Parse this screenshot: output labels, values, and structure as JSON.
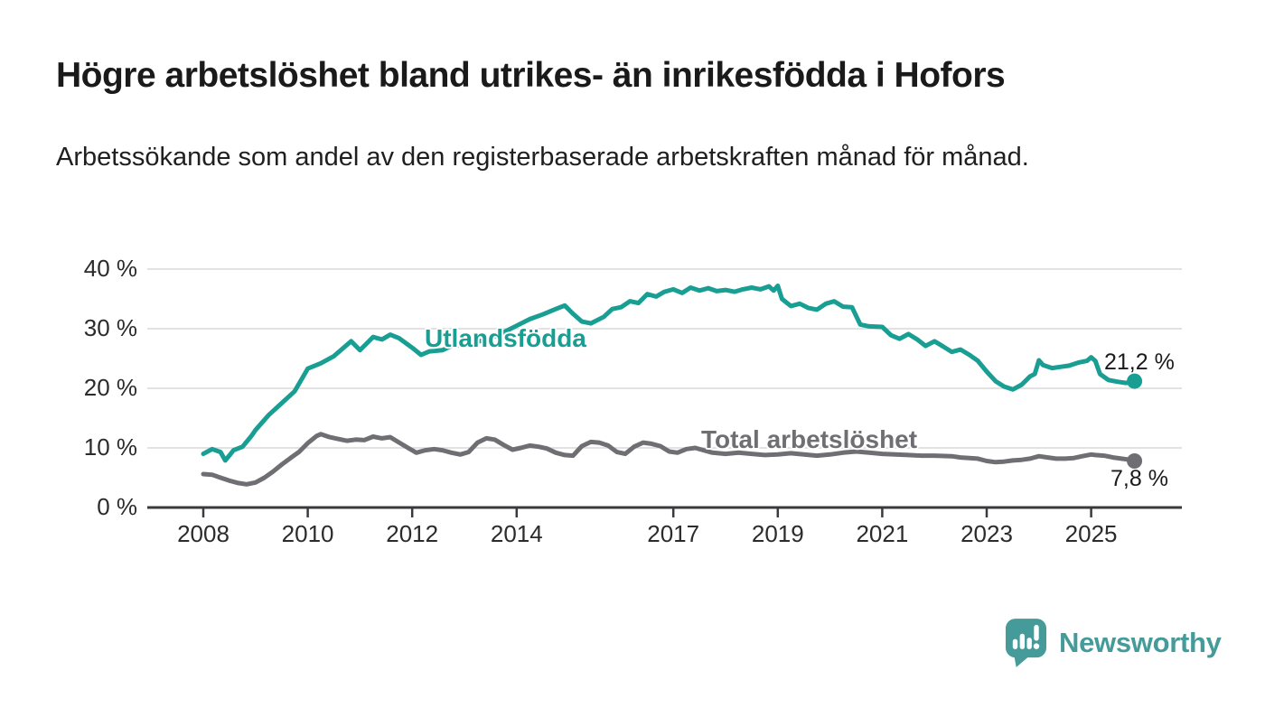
{
  "header": {
    "title": "Högre arbetslöshet bland utrikes- än inrikesfödda i Hofors",
    "subtitle": "Arbetssökande som andel av den registerbaserade arbetskraften månad för månad."
  },
  "chart_data": {
    "type": "line",
    "title": "Högre arbetslöshet bland utrikes- än inrikesfödda i Hofors",
    "subtitle": "Arbetssökande som andel av den registerbaserade arbetskraften månad för månad.",
    "xlabel": "",
    "ylabel": "",
    "ylim": [
      0,
      40
    ],
    "xlim": [
      2007,
      2026.7
    ],
    "grid": "horizontal",
    "legend_position": "inline-labels",
    "y_ticks": {
      "values": [
        0,
        10,
        20,
        30,
        40
      ],
      "labels": [
        "0 %",
        "10 %",
        "20 %",
        "30 %",
        "40 %"
      ]
    },
    "x_ticks": {
      "values": [
        2008,
        2010,
        2012,
        2014,
        2017,
        2019,
        2021,
        2023,
        2025
      ],
      "labels": [
        "2008",
        "2010",
        "2012",
        "2014",
        "2017",
        "2019",
        "2021",
        "2023",
        "2025"
      ]
    },
    "series": [
      {
        "name": "Utlandsfödda",
        "color": "#189e93",
        "end_label": "21,2 %",
        "end_value": 21.2,
        "points": [
          [
            2008.0,
            9.0
          ],
          [
            2008.17,
            9.8
          ],
          [
            2008.33,
            9.3
          ],
          [
            2008.42,
            7.9
          ],
          [
            2008.58,
            9.6
          ],
          [
            2008.75,
            10.2
          ],
          [
            2008.92,
            12.0
          ],
          [
            2009.0,
            13.0
          ],
          [
            2009.25,
            15.5
          ],
          [
            2009.5,
            17.5
          ],
          [
            2009.75,
            19.5
          ],
          [
            2010.0,
            23.3
          ],
          [
            2010.25,
            24.2
          ],
          [
            2010.5,
            25.4
          ],
          [
            2010.83,
            27.9
          ],
          [
            2011.0,
            26.4
          ],
          [
            2011.25,
            28.6
          ],
          [
            2011.42,
            28.2
          ],
          [
            2011.58,
            29.0
          ],
          [
            2011.75,
            28.4
          ],
          [
            2012.0,
            26.8
          ],
          [
            2012.17,
            25.6
          ],
          [
            2012.33,
            26.2
          ],
          [
            2012.58,
            26.4
          ],
          [
            2012.75,
            27.1
          ],
          [
            2013.0,
            27.4
          ],
          [
            2013.25,
            27.8
          ],
          [
            2013.5,
            28.4
          ],
          [
            2013.75,
            29.4
          ],
          [
            2014.0,
            30.5
          ],
          [
            2014.25,
            31.6
          ],
          [
            2014.5,
            32.4
          ],
          [
            2014.75,
            33.3
          ],
          [
            2014.92,
            33.9
          ],
          [
            2015.08,
            32.5
          ],
          [
            2015.25,
            31.2
          ],
          [
            2015.42,
            30.9
          ],
          [
            2015.67,
            32.0
          ],
          [
            2015.83,
            33.3
          ],
          [
            2016.0,
            33.6
          ],
          [
            2016.17,
            34.6
          ],
          [
            2016.33,
            34.3
          ],
          [
            2016.5,
            35.8
          ],
          [
            2016.67,
            35.4
          ],
          [
            2016.83,
            36.2
          ],
          [
            2017.0,
            36.6
          ],
          [
            2017.17,
            36.0
          ],
          [
            2017.33,
            36.9
          ],
          [
            2017.5,
            36.4
          ],
          [
            2017.67,
            36.8
          ],
          [
            2017.83,
            36.3
          ],
          [
            2018.0,
            36.5
          ],
          [
            2018.17,
            36.2
          ],
          [
            2018.33,
            36.6
          ],
          [
            2018.5,
            36.9
          ],
          [
            2018.67,
            36.6
          ],
          [
            2018.83,
            37.1
          ],
          [
            2018.92,
            36.4
          ],
          [
            2019.0,
            37.2
          ],
          [
            2019.08,
            35.0
          ],
          [
            2019.25,
            33.8
          ],
          [
            2019.42,
            34.2
          ],
          [
            2019.58,
            33.5
          ],
          [
            2019.75,
            33.2
          ],
          [
            2019.92,
            34.2
          ],
          [
            2020.08,
            34.6
          ],
          [
            2020.25,
            33.7
          ],
          [
            2020.42,
            33.6
          ],
          [
            2020.58,
            30.7
          ],
          [
            2020.75,
            30.4
          ],
          [
            2021.0,
            30.3
          ],
          [
            2021.17,
            28.9
          ],
          [
            2021.33,
            28.3
          ],
          [
            2021.5,
            29.1
          ],
          [
            2021.67,
            28.2
          ],
          [
            2021.83,
            27.1
          ],
          [
            2022.0,
            27.9
          ],
          [
            2022.17,
            27.0
          ],
          [
            2022.33,
            26.1
          ],
          [
            2022.5,
            26.5
          ],
          [
            2022.67,
            25.6
          ],
          [
            2022.83,
            24.6
          ],
          [
            2023.0,
            22.8
          ],
          [
            2023.17,
            21.2
          ],
          [
            2023.33,
            20.3
          ],
          [
            2023.5,
            19.8
          ],
          [
            2023.67,
            20.6
          ],
          [
            2023.83,
            22.0
          ],
          [
            2023.92,
            22.4
          ],
          [
            2024.0,
            24.7
          ],
          [
            2024.08,
            23.9
          ],
          [
            2024.25,
            23.4
          ],
          [
            2024.42,
            23.6
          ],
          [
            2024.58,
            23.8
          ],
          [
            2024.75,
            24.3
          ],
          [
            2024.92,
            24.6
          ],
          [
            2025.0,
            25.2
          ],
          [
            2025.08,
            24.6
          ],
          [
            2025.17,
            22.4
          ],
          [
            2025.33,
            21.4
          ],
          [
            2025.5,
            21.1
          ],
          [
            2025.67,
            20.9
          ],
          [
            2025.83,
            21.2
          ]
        ]
      },
      {
        "name": "Total arbetslöshet",
        "color": "#6f6f73",
        "end_label": "7,8 %",
        "end_value": 7.8,
        "points": [
          [
            2008.0,
            5.6
          ],
          [
            2008.17,
            5.5
          ],
          [
            2008.33,
            5.0
          ],
          [
            2008.5,
            4.5
          ],
          [
            2008.67,
            4.1
          ],
          [
            2008.83,
            3.9
          ],
          [
            2009.0,
            4.2
          ],
          [
            2009.17,
            5.0
          ],
          [
            2009.33,
            6.0
          ],
          [
            2009.5,
            7.2
          ],
          [
            2009.67,
            8.3
          ],
          [
            2009.83,
            9.3
          ],
          [
            2010.0,
            10.8
          ],
          [
            2010.17,
            12.0
          ],
          [
            2010.25,
            12.3
          ],
          [
            2010.42,
            11.8
          ],
          [
            2010.58,
            11.5
          ],
          [
            2010.75,
            11.2
          ],
          [
            2010.92,
            11.4
          ],
          [
            2011.08,
            11.3
          ],
          [
            2011.25,
            11.9
          ],
          [
            2011.42,
            11.6
          ],
          [
            2011.58,
            11.8
          ],
          [
            2011.75,
            10.9
          ],
          [
            2011.92,
            10.0
          ],
          [
            2012.08,
            9.2
          ],
          [
            2012.25,
            9.6
          ],
          [
            2012.42,
            9.8
          ],
          [
            2012.58,
            9.6
          ],
          [
            2012.75,
            9.2
          ],
          [
            2012.92,
            8.9
          ],
          [
            2013.08,
            9.3
          ],
          [
            2013.25,
            10.9
          ],
          [
            2013.42,
            11.6
          ],
          [
            2013.58,
            11.4
          ],
          [
            2013.75,
            10.5
          ],
          [
            2013.92,
            9.7
          ],
          [
            2014.08,
            10.0
          ],
          [
            2014.25,
            10.4
          ],
          [
            2014.42,
            10.2
          ],
          [
            2014.58,
            9.9
          ],
          [
            2014.75,
            9.2
          ],
          [
            2014.92,
            8.8
          ],
          [
            2015.08,
            8.7
          ],
          [
            2015.25,
            10.3
          ],
          [
            2015.42,
            11.0
          ],
          [
            2015.58,
            10.9
          ],
          [
            2015.75,
            10.4
          ],
          [
            2015.92,
            9.3
          ],
          [
            2016.08,
            9.0
          ],
          [
            2016.25,
            10.2
          ],
          [
            2016.42,
            10.9
          ],
          [
            2016.58,
            10.7
          ],
          [
            2016.75,
            10.3
          ],
          [
            2016.92,
            9.4
          ],
          [
            2017.08,
            9.2
          ],
          [
            2017.25,
            9.8
          ],
          [
            2017.42,
            10.0
          ],
          [
            2017.58,
            9.6
          ],
          [
            2017.75,
            9.2
          ],
          [
            2018.0,
            9.0
          ],
          [
            2018.25,
            9.2
          ],
          [
            2018.5,
            9.0
          ],
          [
            2018.75,
            8.8
          ],
          [
            2019.0,
            8.9
          ],
          [
            2019.25,
            9.1
          ],
          [
            2019.5,
            8.9
          ],
          [
            2019.75,
            8.7
          ],
          [
            2020.0,
            8.9
          ],
          [
            2020.25,
            9.2
          ],
          [
            2020.5,
            9.4
          ],
          [
            2020.75,
            9.2
          ],
          [
            2021.0,
            9.0
          ],
          [
            2021.25,
            8.9
          ],
          [
            2021.5,
            8.8
          ],
          [
            2021.75,
            8.7
          ],
          [
            2022.0,
            8.7
          ],
          [
            2022.33,
            8.6
          ],
          [
            2022.5,
            8.4
          ],
          [
            2022.67,
            8.3
          ],
          [
            2022.83,
            8.2
          ],
          [
            2023.0,
            7.8
          ],
          [
            2023.17,
            7.6
          ],
          [
            2023.33,
            7.7
          ],
          [
            2023.5,
            7.9
          ],
          [
            2023.67,
            8.0
          ],
          [
            2023.83,
            8.2
          ],
          [
            2024.0,
            8.6
          ],
          [
            2024.17,
            8.4
          ],
          [
            2024.33,
            8.2
          ],
          [
            2024.5,
            8.2
          ],
          [
            2024.67,
            8.3
          ],
          [
            2024.83,
            8.6
          ],
          [
            2025.0,
            8.9
          ],
          [
            2025.08,
            8.8
          ],
          [
            2025.25,
            8.7
          ],
          [
            2025.42,
            8.4
          ],
          [
            2025.58,
            8.2
          ],
          [
            2025.75,
            8.0
          ],
          [
            2025.83,
            7.8
          ]
        ]
      }
    ]
  },
  "footer": {
    "brand": "Newsworthy"
  },
  "colors": {
    "accent_teal": "#189e93",
    "series_gray": "#6f6f73",
    "logo_teal": "#459a9a",
    "grid": "#d9d9d9",
    "axis": "#3a3a3c",
    "text_dark": "#1a1a1a",
    "tick_text": "#2b2b2b"
  }
}
